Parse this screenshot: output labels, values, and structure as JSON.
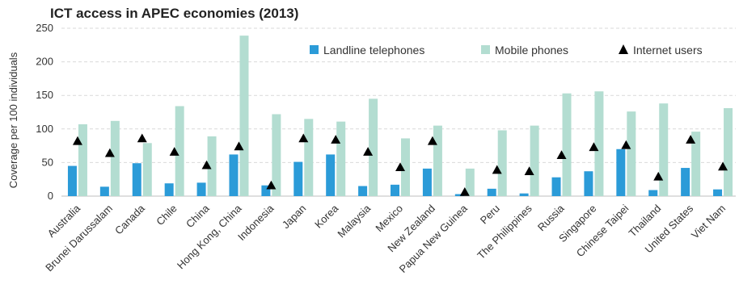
{
  "chart_data": {
    "type": "bar",
    "title": "ICT access in APEC economies (2013)",
    "ylabel": "Coverage per 100 individuals",
    "xlabel": "",
    "ylim": [
      0,
      250
    ],
    "yticks": [
      0,
      50,
      100,
      150,
      200,
      250
    ],
    "grid": true,
    "legend_position": "top-right",
    "categories": [
      "Australia",
      "Brunei Darussalam",
      "Canada",
      "Chile",
      "China",
      "Hong Kong, China",
      "Indonesia",
      "Japan",
      "Korea",
      "Malaysia",
      "Mexico",
      "New Zealand",
      "Papua New Guinea",
      "Peru",
      "The Philippines",
      "Russia",
      "Singapore",
      "Chinese Taipei",
      "Thailand",
      "United States",
      "Viet Nam"
    ],
    "series": [
      {
        "name": "Landline telephones",
        "type": "bar",
        "color": "#2b9bd8",
        "values": [
          45,
          14,
          49,
          19,
          20,
          62,
          16,
          51,
          62,
          15,
          17,
          41,
          3,
          11,
          4,
          28,
          37,
          70,
          9,
          42,
          10
        ]
      },
      {
        "name": "Mobile phones",
        "type": "bar",
        "color": "#b3ddd1",
        "values": [
          107,
          112,
          79,
          134,
          89,
          239,
          122,
          115,
          111,
          145,
          86,
          105,
          41,
          98,
          105,
          153,
          156,
          126,
          138,
          96,
          131
        ]
      },
      {
        "name": "Internet users",
        "type": "marker",
        "marker": "triangle",
        "color": "#000000",
        "values": [
          82,
          64,
          86,
          66,
          46,
          74,
          16,
          86,
          84,
          66,
          43,
          82,
          6,
          39,
          37,
          61,
          73,
          76,
          29,
          84,
          44
        ]
      }
    ]
  }
}
